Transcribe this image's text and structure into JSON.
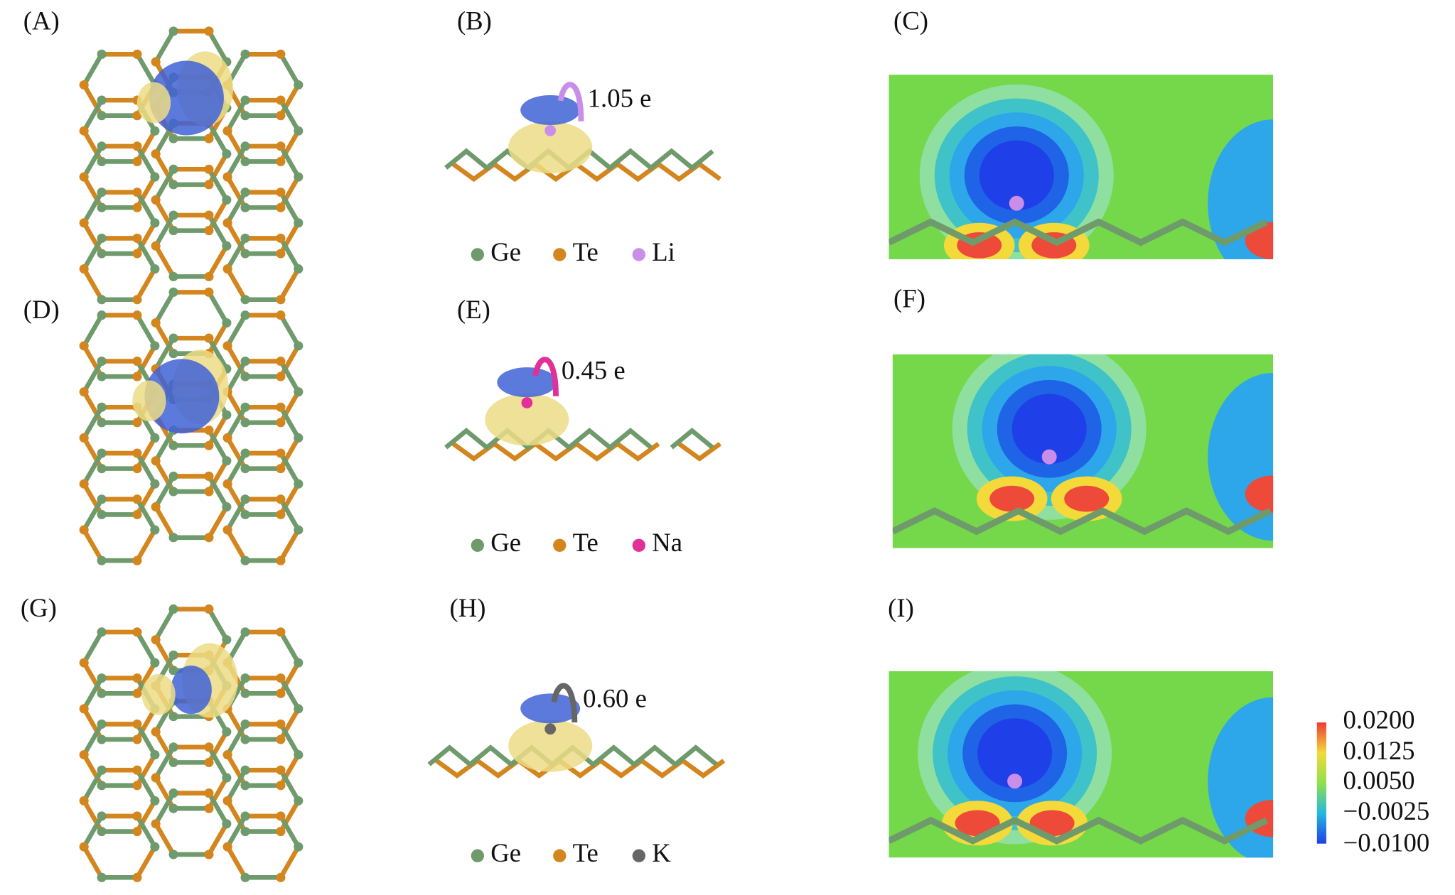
{
  "panels": [
    "(A)",
    "(B)",
    "(C)",
    "(D)",
    "(E)",
    "(F)",
    "(G)",
    "(H)",
    "(I)"
  ],
  "charge_transfer": [
    "1.05 e",
    "0.45 e",
    "0.60 e"
  ],
  "legends": [
    [
      "Ge",
      "Te",
      "Li"
    ],
    [
      "Ge",
      "Te",
      "Na"
    ],
    [
      "Ge",
      "Te",
      "K"
    ]
  ],
  "colorbar": [
    "0.0200",
    "0.0125",
    "0.0050",
    "−0.0025",
    "−0.0100"
  ]
}
